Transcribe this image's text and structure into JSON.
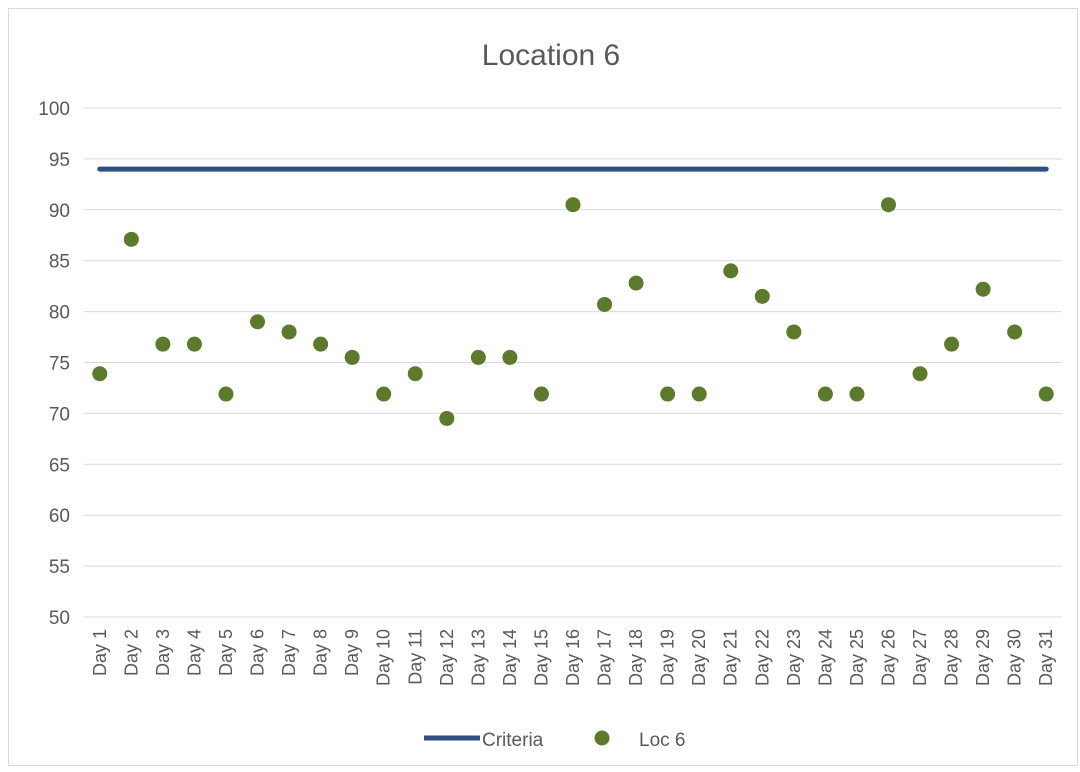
{
  "chart_data": {
    "type": "scatter",
    "title": "Location 6",
    "xlabel": "",
    "ylabel": "",
    "categories": [
      "Day 1",
      "Day 2",
      "Day 3",
      "Day 4",
      "Day 5",
      "Day 6",
      "Day 7",
      "Day 8",
      "Day 9",
      "Day 10",
      "Day 11",
      "Day 12",
      "Day 13",
      "Day 14",
      "Day 15",
      "Day 16",
      "Day 17",
      "Day 18",
      "Day 19",
      "Day 20",
      "Day 21",
      "Day 22",
      "Day 23",
      "Day 24",
      "Day 25",
      "Day 26",
      "Day 27",
      "Day 28",
      "Day 29",
      "Day 30",
      "Day 31"
    ],
    "ylim": [
      50,
      100
    ],
    "y_ticks": [
      50,
      55,
      60,
      65,
      70,
      75,
      80,
      85,
      90,
      95,
      100
    ],
    "grid": true,
    "legend_position": "bottom",
    "series": [
      {
        "name": "Criteria",
        "kind": "line",
        "color": "#2f4f7f",
        "values": [
          94,
          94,
          94,
          94,
          94,
          94,
          94,
          94,
          94,
          94,
          94,
          94,
          94,
          94,
          94,
          94,
          94,
          94,
          94,
          94,
          94,
          94,
          94,
          94,
          94,
          94,
          94,
          94,
          94,
          94,
          94
        ]
      },
      {
        "name": "Loc 6",
        "kind": "marker",
        "color": "#5b7a2b",
        "values": [
          73.9,
          87.1,
          76.8,
          76.8,
          71.9,
          79.0,
          78.0,
          76.8,
          75.5,
          71.9,
          73.9,
          69.5,
          75.5,
          75.5,
          71.9,
          90.5,
          80.7,
          82.8,
          71.9,
          71.9,
          84.0,
          81.5,
          78.0,
          71.9,
          71.9,
          90.5,
          73.9,
          76.8,
          82.2,
          78.0,
          71.9
        ]
      }
    ]
  }
}
